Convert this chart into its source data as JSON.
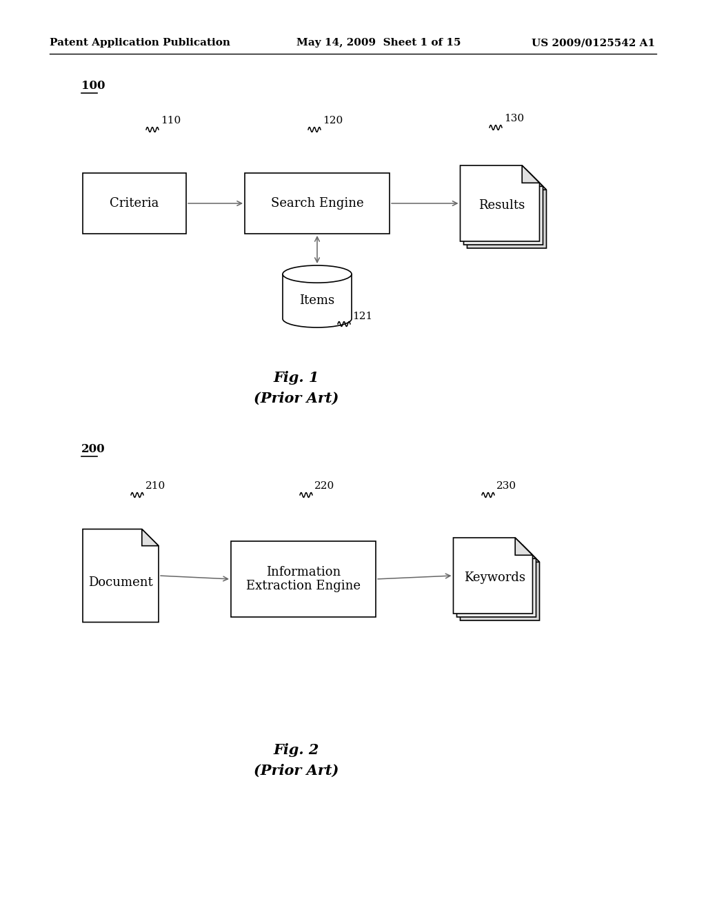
{
  "background_color": "#ffffff",
  "header_left": "Patent Application Publication",
  "header_mid": "May 14, 2009  Sheet 1 of 15",
  "header_right": "US 2009/0125542 A1",
  "fig1_label": "100",
  "fig1_caption": "Fig. 1",
  "fig1_subcap": "(Prior Art)",
  "fig2_label": "200",
  "fig2_caption": "Fig. 2",
  "fig2_subcap": "(Prior Art)"
}
